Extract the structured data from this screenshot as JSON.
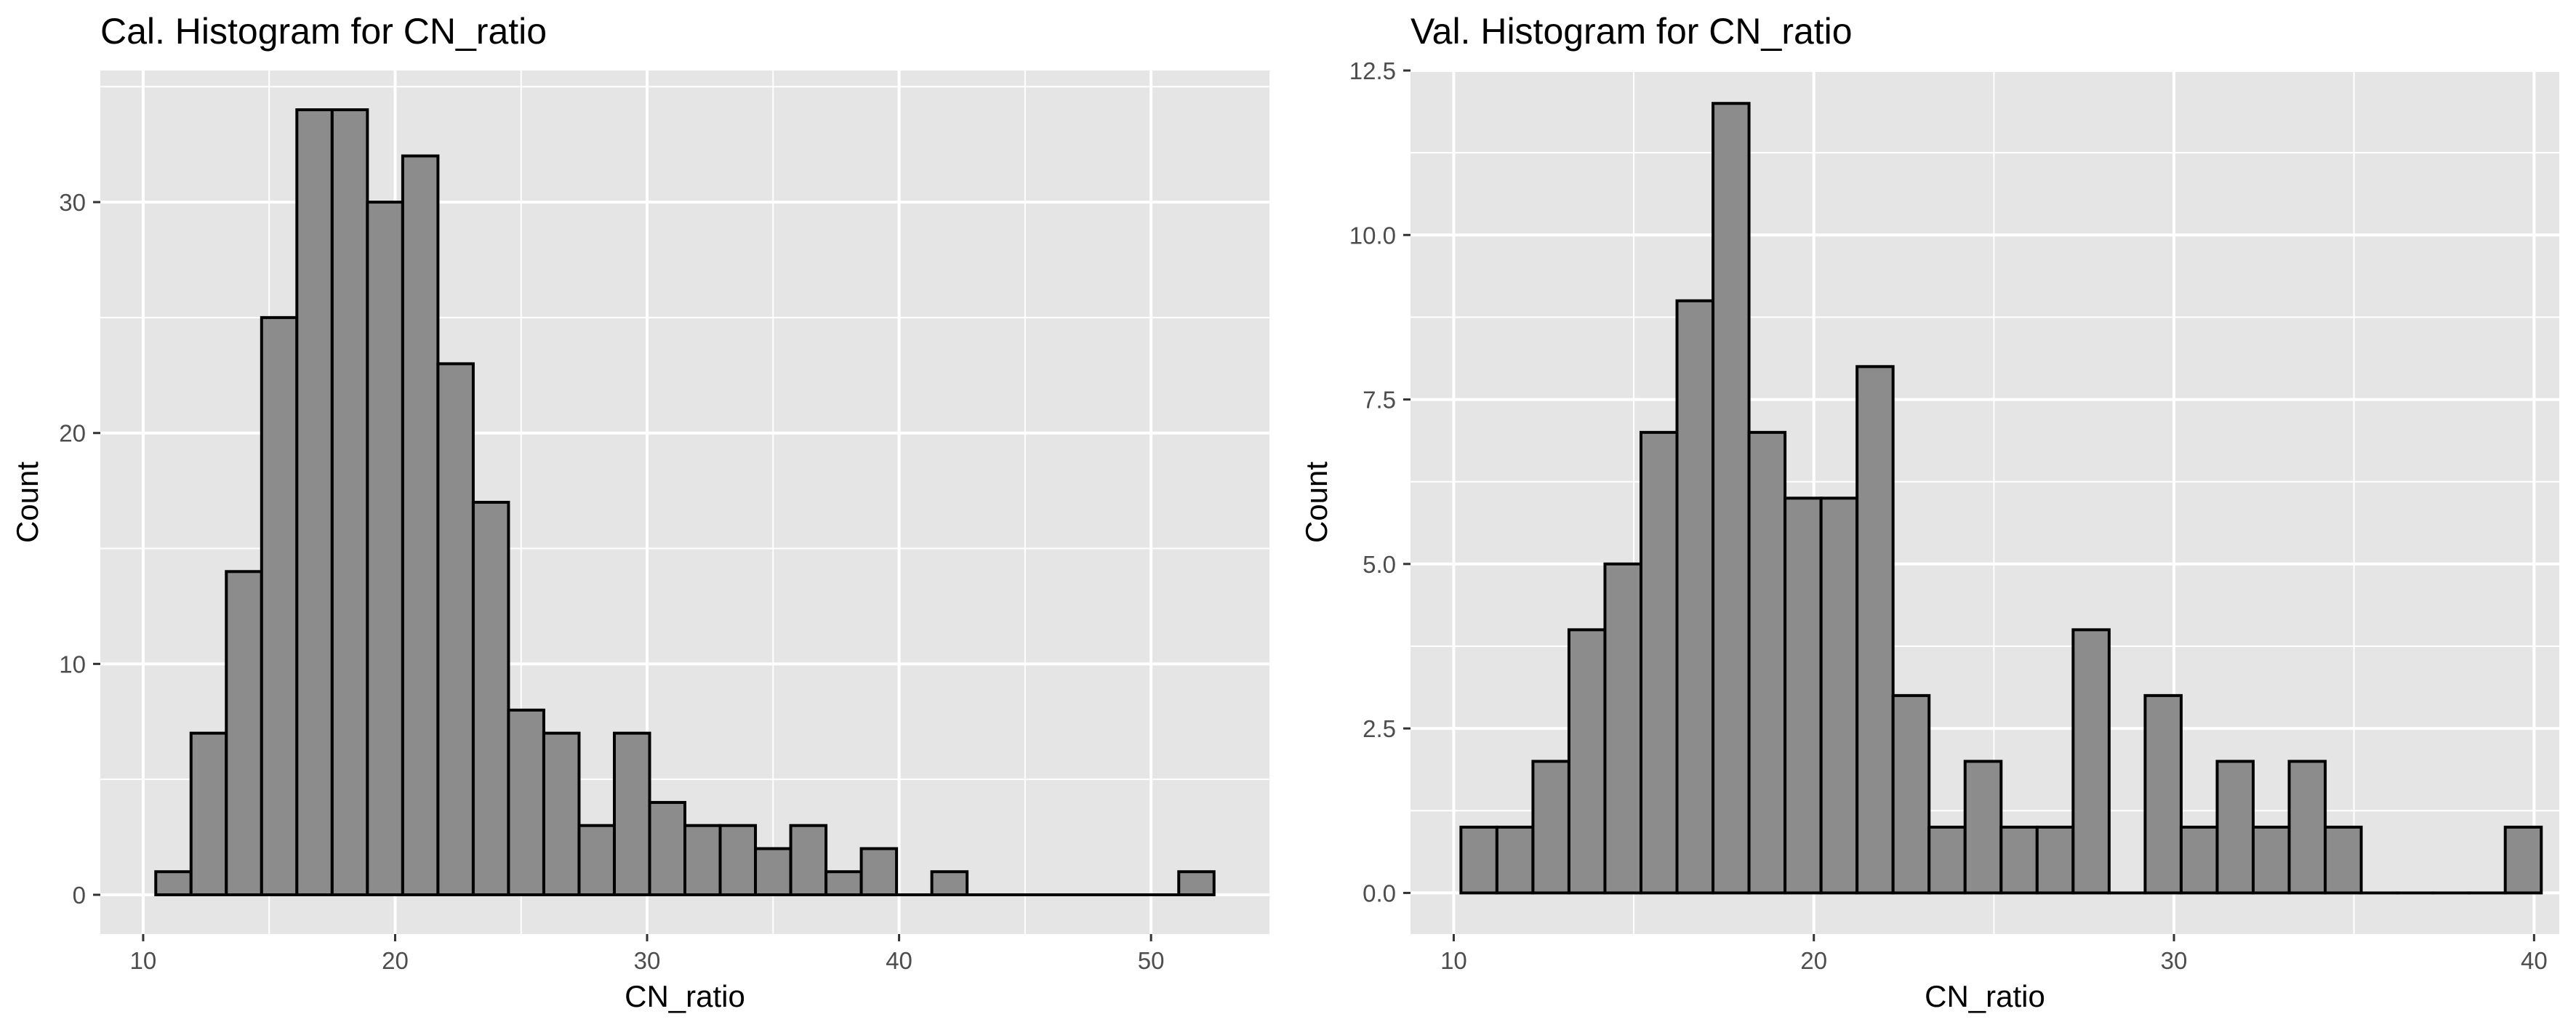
{
  "chart_data": [
    {
      "type": "bar",
      "title": "Cal. Histogram for CN_ratio",
      "xlabel": "CN_ratio",
      "ylabel": "Count",
      "grid": true,
      "legend": "none",
      "colors": {
        "panel": "#e5e5e5",
        "bar_fill": "#8c8c8c",
        "bar_stroke": "#000000",
        "grid": "#ffffff"
      },
      "xlim": [
        8.3,
        54.7
      ],
      "ylim": [
        -1.7,
        35.7
      ],
      "x_ticks": [
        10,
        20,
        30,
        40,
        50
      ],
      "y_ticks": [
        0,
        10,
        20,
        30
      ],
      "bin_width": 1.4,
      "bins": [
        {
          "x": 11.2,
          "count": 1
        },
        {
          "x": 12.6,
          "count": 7
        },
        {
          "x": 14.0,
          "count": 14
        },
        {
          "x": 15.4,
          "count": 25
        },
        {
          "x": 16.8,
          "count": 34
        },
        {
          "x": 18.2,
          "count": 34
        },
        {
          "x": 19.6,
          "count": 30
        },
        {
          "x": 21.0,
          "count": 32
        },
        {
          "x": 22.4,
          "count": 23
        },
        {
          "x": 23.8,
          "count": 17
        },
        {
          "x": 25.2,
          "count": 8
        },
        {
          "x": 26.6,
          "count": 7
        },
        {
          "x": 28.0,
          "count": 3
        },
        {
          "x": 29.4,
          "count": 7
        },
        {
          "x": 30.8,
          "count": 4
        },
        {
          "x": 32.2,
          "count": 3
        },
        {
          "x": 33.6,
          "count": 3
        },
        {
          "x": 35.0,
          "count": 2
        },
        {
          "x": 36.4,
          "count": 3
        },
        {
          "x": 37.8,
          "count": 1
        },
        {
          "x": 39.2,
          "count": 2
        },
        {
          "x": 40.6,
          "count": 0
        },
        {
          "x": 42.0,
          "count": 1
        },
        {
          "x": 43.4,
          "count": 0
        },
        {
          "x": 44.8,
          "count": 0
        },
        {
          "x": 46.2,
          "count": 0
        },
        {
          "x": 47.6,
          "count": 0
        },
        {
          "x": 49.0,
          "count": 0
        },
        {
          "x": 50.4,
          "count": 0
        },
        {
          "x": 51.8,
          "count": 1
        }
      ]
    },
    {
      "type": "bar",
      "title": "Val. Histogram for CN_ratio",
      "xlabel": "CN_ratio",
      "ylabel": "Count",
      "grid": true,
      "legend": "none",
      "colors": {
        "panel": "#e5e5e5",
        "bar_fill": "#8c8c8c",
        "bar_stroke": "#000000",
        "grid": "#ffffff"
      },
      "xlim": [
        8.8,
        40.7
      ],
      "ylim": [
        -0.625,
        12.5
      ],
      "x_ticks": [
        10,
        20,
        30,
        40
      ],
      "y_ticks": [
        0.0,
        2.5,
        5.0,
        7.5,
        10.0,
        12.5
      ],
      "y_tick_labels": [
        "0.0",
        "2.5",
        "5.0",
        "7.5",
        "10.0",
        "12.5"
      ],
      "bin_width": 1.0,
      "bins": [
        {
          "x": 10.7,
          "count": 1
        },
        {
          "x": 11.7,
          "count": 1
        },
        {
          "x": 12.7,
          "count": 2
        },
        {
          "x": 13.7,
          "count": 4
        },
        {
          "x": 14.7,
          "count": 5
        },
        {
          "x": 15.7,
          "count": 7
        },
        {
          "x": 16.7,
          "count": 9
        },
        {
          "x": 17.7,
          "count": 12
        },
        {
          "x": 18.7,
          "count": 7
        },
        {
          "x": 19.7,
          "count": 6
        },
        {
          "x": 20.7,
          "count": 6
        },
        {
          "x": 21.7,
          "count": 8
        },
        {
          "x": 22.7,
          "count": 3
        },
        {
          "x": 23.7,
          "count": 1
        },
        {
          "x": 24.7,
          "count": 2
        },
        {
          "x": 25.7,
          "count": 1
        },
        {
          "x": 26.7,
          "count": 1
        },
        {
          "x": 27.7,
          "count": 4
        },
        {
          "x": 28.7,
          "count": 0
        },
        {
          "x": 29.7,
          "count": 3
        },
        {
          "x": 30.7,
          "count": 1
        },
        {
          "x": 31.7,
          "count": 2
        },
        {
          "x": 32.7,
          "count": 1
        },
        {
          "x": 33.7,
          "count": 2
        },
        {
          "x": 34.7,
          "count": 1
        },
        {
          "x": 35.7,
          "count": 0
        },
        {
          "x": 36.7,
          "count": 0
        },
        {
          "x": 37.7,
          "count": 0
        },
        {
          "x": 38.7,
          "count": 0
        },
        {
          "x": 39.7,
          "count": 1
        }
      ]
    }
  ]
}
